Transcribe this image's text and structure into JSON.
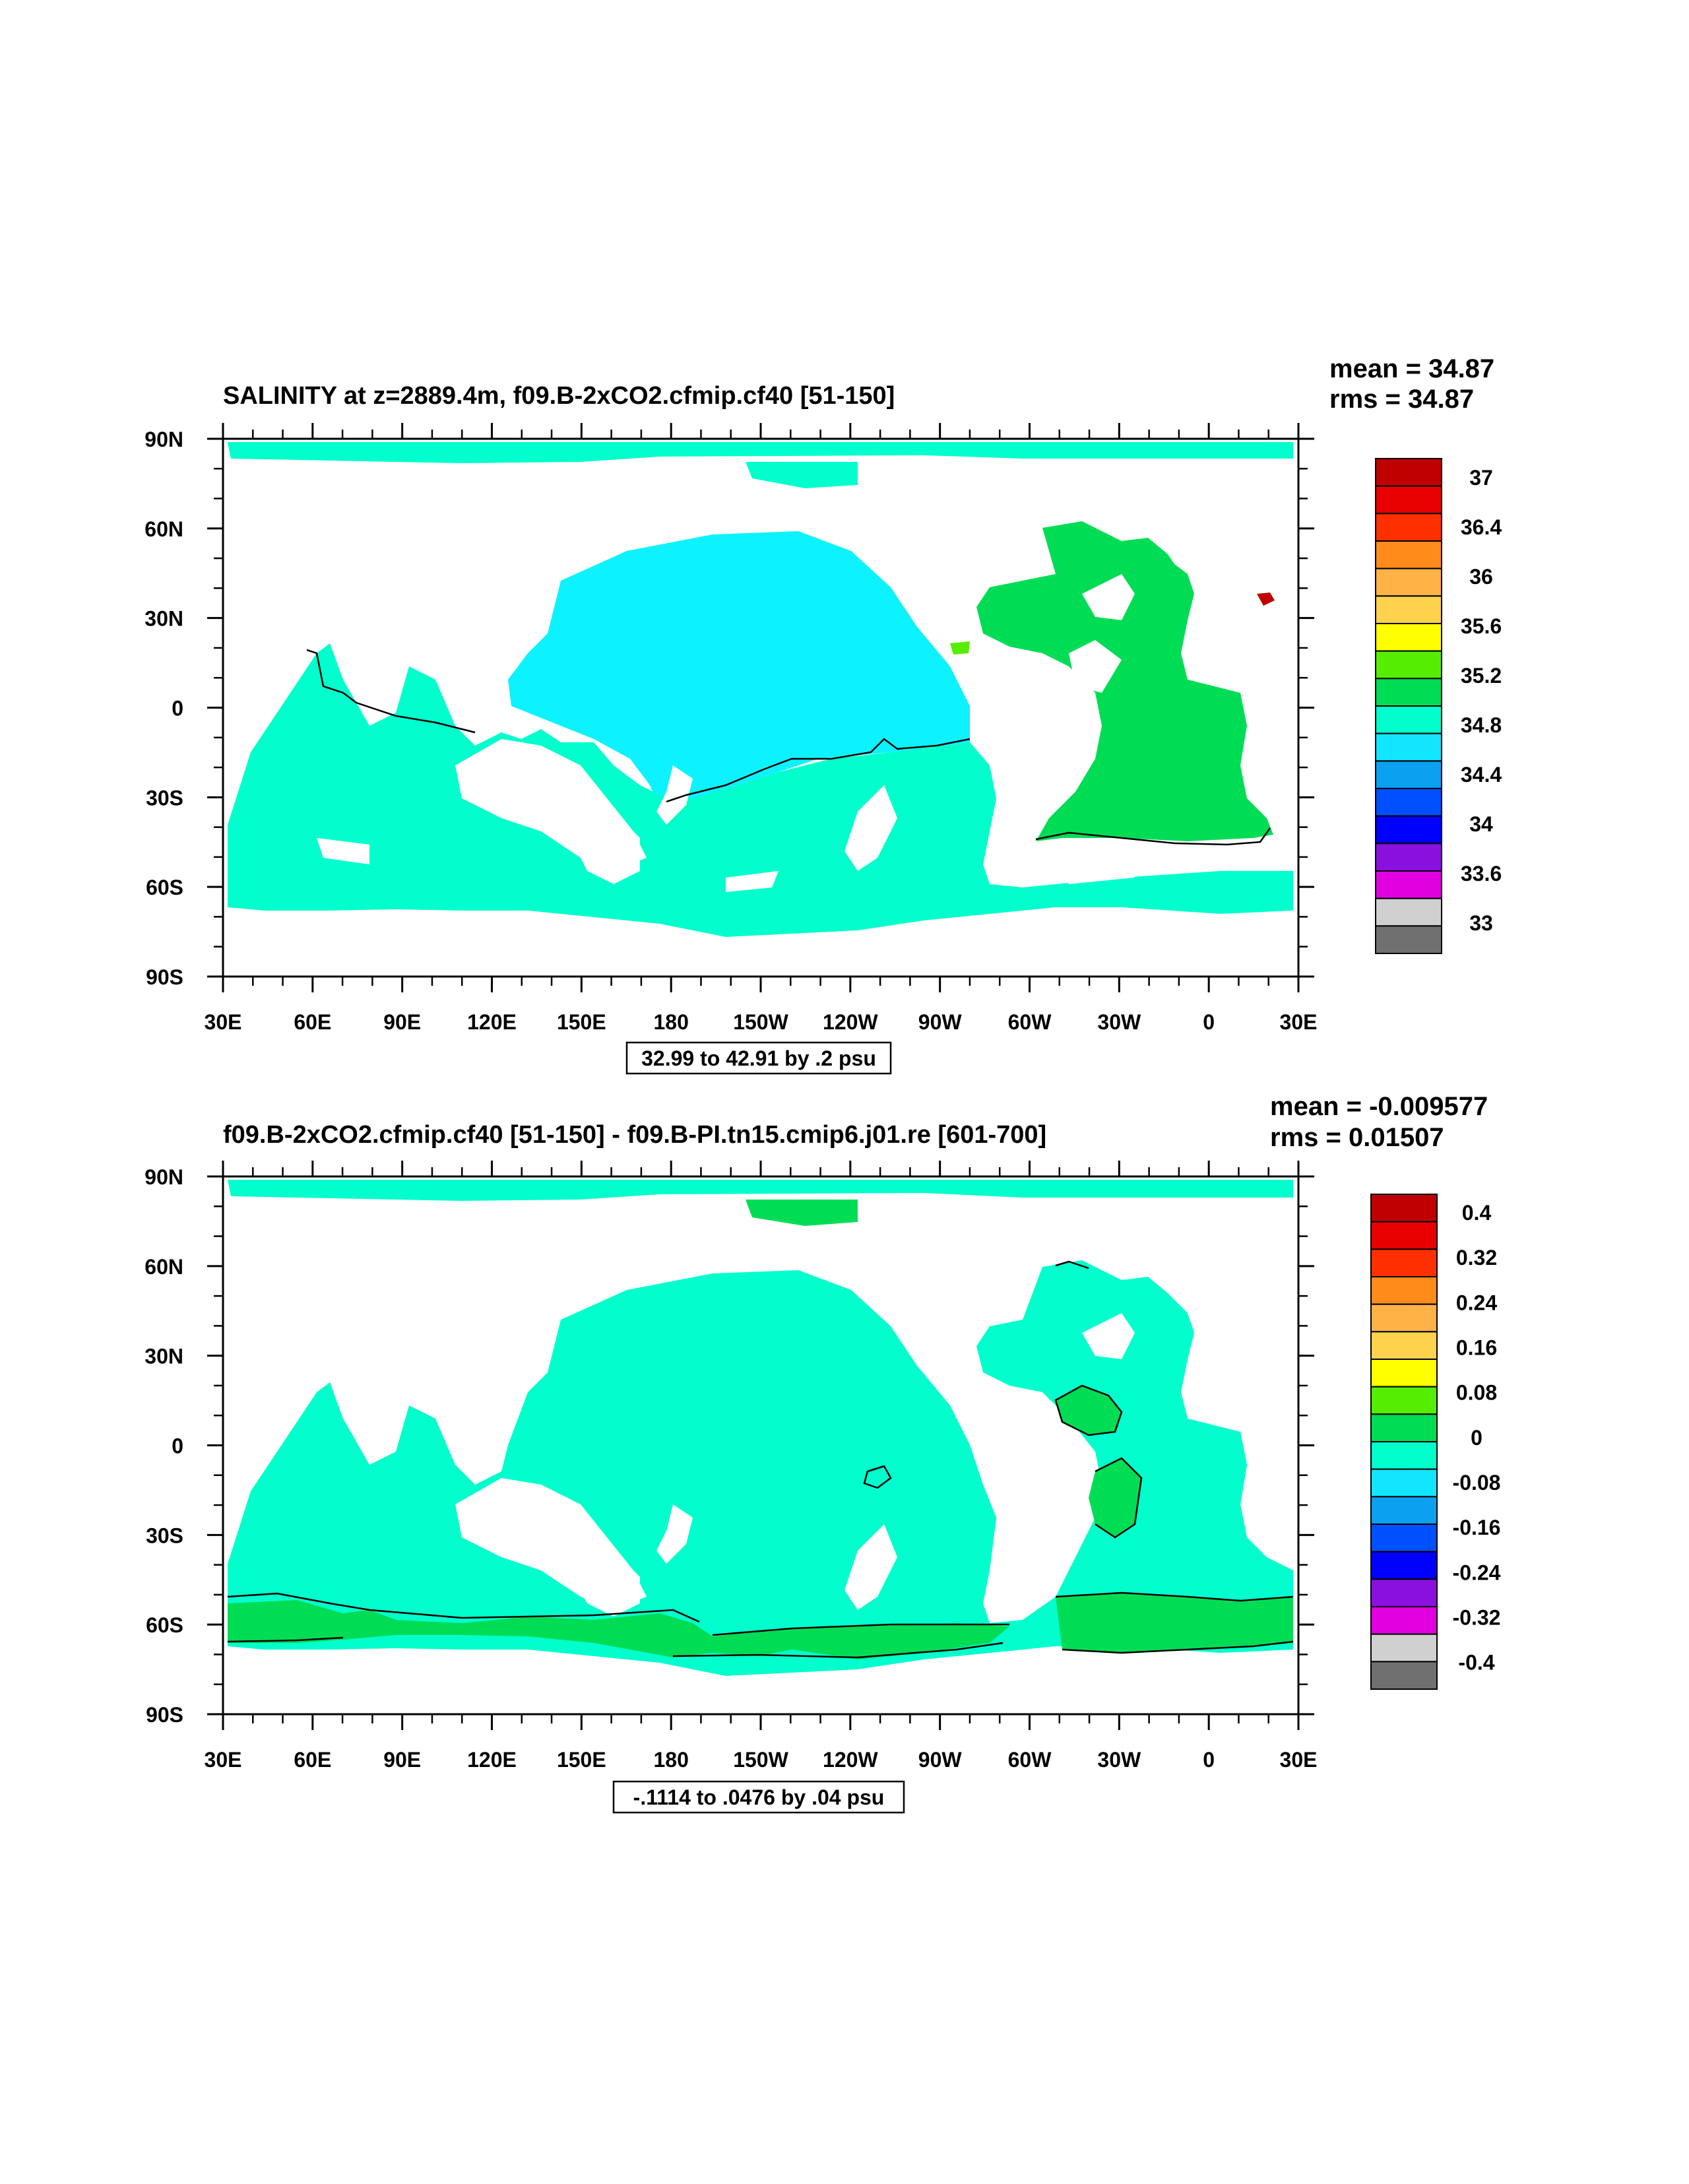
{
  "chart_data": [
    {
      "type": "heatmap",
      "title": "SALINITY at z=2889.4m, f09.B-2xCO2.cfmip.cf40 [51-150]",
      "stats": {
        "mean": "mean = 34.87",
        "rms": "rms = 34.87"
      },
      "x_ticks": [
        "30E",
        "60E",
        "90E",
        "120E",
        "150E",
        "180",
        "150W",
        "120W",
        "90W",
        "60W",
        "30W",
        "0",
        "30E"
      ],
      "y_ticks": [
        "90N",
        "60N",
        "30N",
        "0",
        "30S",
        "60S",
        "90S"
      ],
      "contour_info": "32.99 to 42.91 by .2 psu",
      "colorbar_labels": [
        "37",
        "36.4",
        "36",
        "35.6",
        "35.2",
        "34.8",
        "34.4",
        "34",
        "33.6",
        "33"
      ],
      "colorbar_colors": [
        "#c00000",
        "#e80000",
        "#ff3000",
        "#ff8c1a",
        "#ffb347",
        "#ffd24d",
        "#ffff00",
        "#55ee00",
        "#00dd55",
        "#00ffcc",
        "#12e5ff",
        "#0ca0f0",
        "#0050ff",
        "#0000ff",
        "#8a10e0",
        "#e000e0",
        "#d0d0d0",
        "#707070"
      ],
      "regions": [
        {
          "name": "Pacific",
          "color": "#0df2ff"
        },
        {
          "name": "Indian and Southern Ocean",
          "color": "#00ffcc"
        },
        {
          "name": "Atlantic",
          "color": "#00dd55"
        }
      ]
    },
    {
      "type": "heatmap",
      "title": "f09.B-2xCO2.cfmip.cf40 [51-150] - f09.B-PI.tn15.cmip6.j01.re [601-700]",
      "stats": {
        "mean": "mean = -0.009577",
        "rms": "rms = 0.01507"
      },
      "x_ticks": [
        "30E",
        "60E",
        "90E",
        "120E",
        "150E",
        "180",
        "150W",
        "120W",
        "90W",
        "60W",
        "30W",
        "0",
        "30E"
      ],
      "y_ticks": [
        "90N",
        "60N",
        "30N",
        "0",
        "30S",
        "60S",
        "90S"
      ],
      "contour_info": "-.1114 to .0476 by .04 psu",
      "colorbar_labels": [
        "0.4",
        "0.32",
        "0.24",
        "0.16",
        "0.08",
        "0",
        "-0.08",
        "-0.16",
        "-0.24",
        "-0.32",
        "-0.4"
      ],
      "colorbar_colors": [
        "#c00000",
        "#e80000",
        "#ff3000",
        "#ff8c1a",
        "#ffb347",
        "#ffd24d",
        "#ffff00",
        "#55ee00",
        "#00dd55",
        "#00ffcc",
        "#12e5ff",
        "#0ca0f0",
        "#0050ff",
        "#0000ff",
        "#8a10e0",
        "#e000e0",
        "#d0d0d0",
        "#707070"
      ],
      "regions": [
        {
          "name": "Global ocean",
          "color": "#00ffcc"
        },
        {
          "name": "Southern Ocean band",
          "color": "#00dd55"
        }
      ]
    }
  ]
}
